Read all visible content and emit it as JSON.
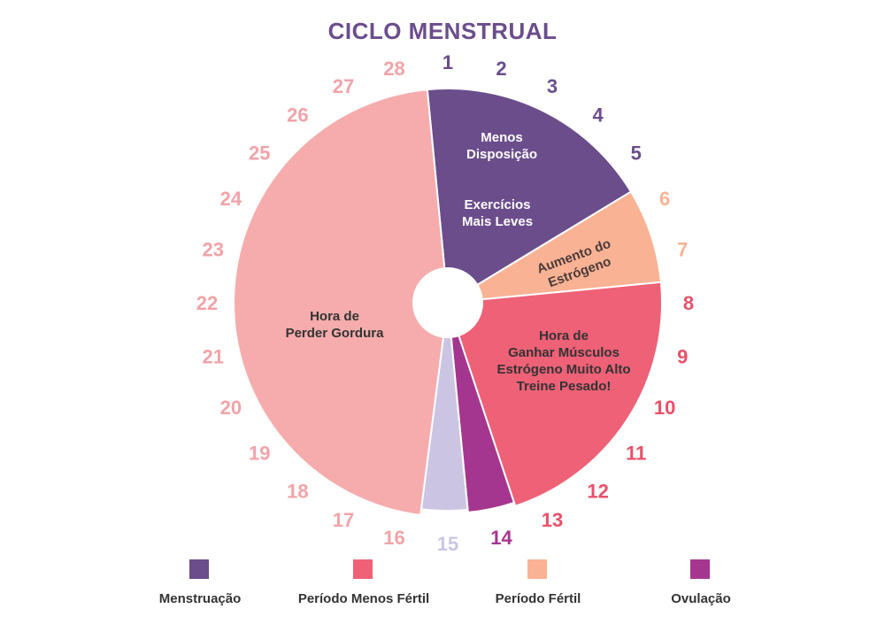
{
  "chart_data": {
    "type": "pie",
    "title": "CICLO MENSTRUAL",
    "slices": [
      {
        "id": "menstruacao",
        "start_day": 1,
        "end_day": 5,
        "color": "#6b4d8c",
        "labels": [
          [
            "Menos",
            "Disposição"
          ],
          [
            "Exercícios",
            "Mais Leves"
          ]
        ],
        "text_color": "#ffffff"
      },
      {
        "id": "aumento-estrogeno",
        "start_day": 6,
        "end_day": 7,
        "color": "#f9b394",
        "labels": [
          [
            "Aumento do",
            "Estrógeno"
          ]
        ],
        "text_color": "#4a3a3a"
      },
      {
        "id": "ganhar-musculos",
        "start_day": 8,
        "end_day": 13,
        "color": "#ee6177",
        "labels": [
          [
            "Hora de",
            "Ganhar Músculos",
            "Estrógeno Muito Alto",
            "Treine Pesado!"
          ]
        ],
        "text_color": "#333333"
      },
      {
        "id": "ovulacao",
        "start_day": 14,
        "end_day": 14,
        "color": "#a5368f",
        "labels": [],
        "text_color": "#ffffff"
      },
      {
        "id": "dia-15",
        "start_day": 15,
        "end_day": 15,
        "color": "#cbc5e3",
        "labels": [],
        "text_color": "#ffffff"
      },
      {
        "id": "perder-gordura",
        "start_day": 16,
        "end_day": 28,
        "color": "#f6acac",
        "labels": [
          [
            "Hora de",
            "Perder Gordura"
          ]
        ],
        "text_color": "#333333"
      }
    ],
    "days": [
      {
        "n": "1",
        "color": "#6b4d8c"
      },
      {
        "n": "2",
        "color": "#6b4d8c"
      },
      {
        "n": "3",
        "color": "#6b4d8c"
      },
      {
        "n": "4",
        "color": "#6b4d8c"
      },
      {
        "n": "5",
        "color": "#6b4d8c"
      },
      {
        "n": "6",
        "color": "#f9b394"
      },
      {
        "n": "7",
        "color": "#f9b394"
      },
      {
        "n": "8",
        "color": "#e9506a"
      },
      {
        "n": "9",
        "color": "#e9506a"
      },
      {
        "n": "10",
        "color": "#e9506a"
      },
      {
        "n": "11",
        "color": "#e9506a"
      },
      {
        "n": "12",
        "color": "#e9506a"
      },
      {
        "n": "13",
        "color": "#e9506a"
      },
      {
        "n": "14",
        "color": "#a5368f"
      },
      {
        "n": "15",
        "color": "#cbc5e3"
      },
      {
        "n": "16",
        "color": "#f2a3a8"
      },
      {
        "n": "17",
        "color": "#f2a3a8"
      },
      {
        "n": "18",
        "color": "#f2a3a8"
      },
      {
        "n": "19",
        "color": "#f2a3a8"
      },
      {
        "n": "20",
        "color": "#f2a3a8"
      },
      {
        "n": "21",
        "color": "#f2a3a8"
      },
      {
        "n": "22",
        "color": "#f2a3a8"
      },
      {
        "n": "23",
        "color": "#f2a3a8"
      },
      {
        "n": "24",
        "color": "#f2a3a8"
      },
      {
        "n": "25",
        "color": "#f2a3a8"
      },
      {
        "n": "26",
        "color": "#f2a3a8"
      },
      {
        "n": "27",
        "color": "#f2a3a8"
      },
      {
        "n": "28",
        "color": "#f2a3a8"
      }
    ],
    "legend": [
      {
        "label": "Menstruação",
        "color": "#6b4d8c"
      },
      {
        "label": "Período Menos Fértil",
        "color": "#ee6177"
      },
      {
        "label": "Período Fértil",
        "color": "#f9b394"
      },
      {
        "label": "Ovulação",
        "color": "#a5368f"
      }
    ]
  }
}
